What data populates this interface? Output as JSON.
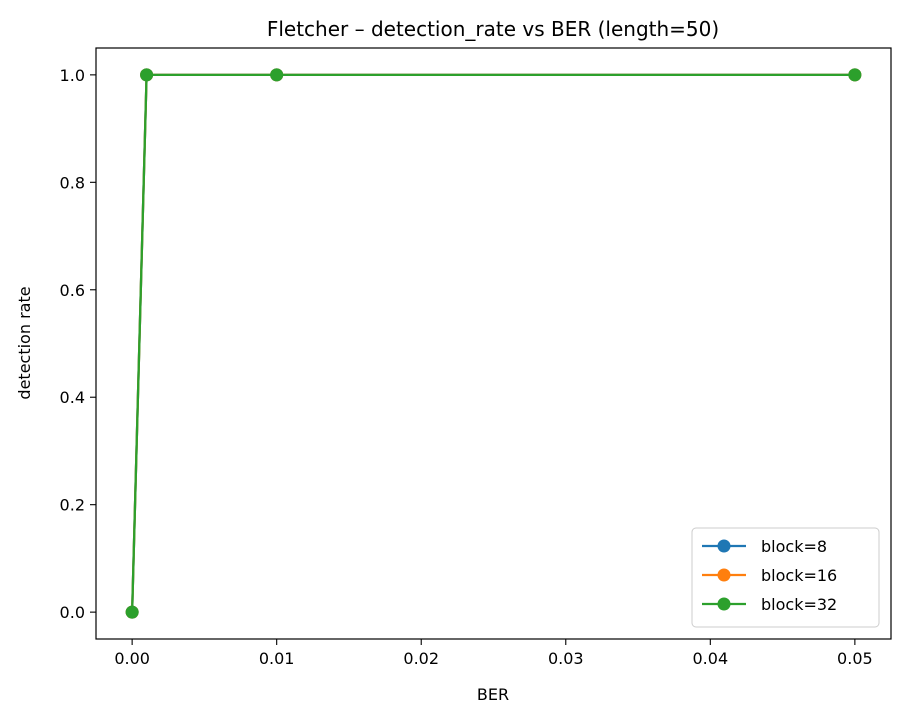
{
  "chart_data": {
    "type": "line",
    "title": "Fletcher – detection_rate vs BER (length=50)",
    "xlabel": "BER",
    "ylabel": "detection rate",
    "xlim": [
      -0.0025,
      0.0525
    ],
    "ylim": [
      -0.05,
      1.05
    ],
    "xticks": [
      0.0,
      0.01,
      0.02,
      0.03,
      0.04,
      0.05
    ],
    "xtick_labels": [
      "0.00",
      "0.01",
      "0.02",
      "0.03",
      "0.04",
      "0.05"
    ],
    "yticks": [
      0.0,
      0.2,
      0.4,
      0.6,
      0.8,
      1.0
    ],
    "ytick_labels": [
      "0.0",
      "0.2",
      "0.4",
      "0.6",
      "0.8",
      "1.0"
    ],
    "grid": false,
    "legend_position": "bottom-right",
    "x": [
      0.0,
      0.001,
      0.01,
      0.05
    ],
    "series": [
      {
        "name": "block=8",
        "color": "#1f77b4",
        "marker": "circle",
        "values": [
          0.0,
          1.0,
          1.0,
          1.0
        ]
      },
      {
        "name": "block=16",
        "color": "#ff7f0e",
        "marker": "circle",
        "values": [
          0.0,
          1.0,
          1.0,
          1.0
        ]
      },
      {
        "name": "block=32",
        "color": "#2ca02c",
        "marker": "circle",
        "values": [
          0.0,
          1.0,
          1.0,
          1.0
        ]
      }
    ]
  }
}
